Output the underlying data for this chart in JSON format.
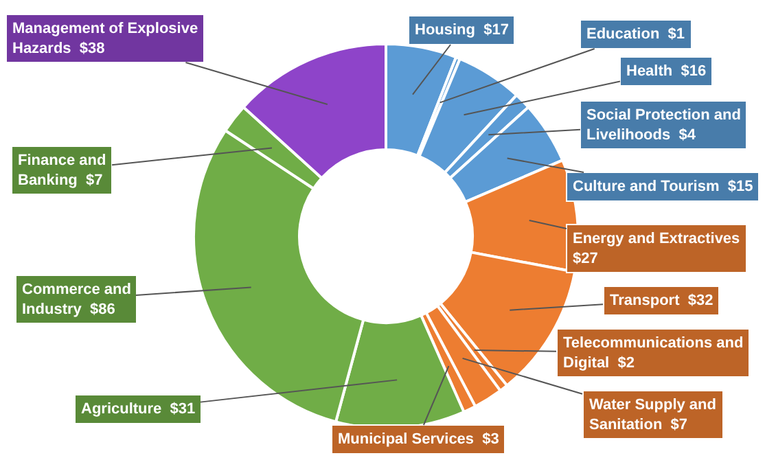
{
  "chart_data": {
    "type": "donut",
    "categories": [
      "Housing",
      "Education",
      "Health",
      "Social Protection and Livelihoods",
      "Culture and Tourism",
      "Energy and Extractives",
      "Transport",
      "Telecommunications and Digital",
      "Water Supply and Sanitation",
      "Municipal Services",
      "Agriculture",
      "Commerce and Industry",
      "Finance and Banking",
      "Management of Explosive Hazards"
    ],
    "values": [
      17,
      1,
      16,
      4,
      15,
      27,
      32,
      2,
      7,
      3,
      31,
      86,
      7,
      38
    ],
    "value_labels": [
      "$17",
      "$1",
      "$16",
      "$4",
      "$15",
      "$27",
      "$32",
      "$2",
      "$7",
      "$3",
      "$31",
      "$86",
      "$7",
      "$38"
    ],
    "colors": [
      "#5b9bd5",
      "#5b9bd5",
      "#5b9bd5",
      "#5b9bd5",
      "#5b9bd5",
      "#ed7d31",
      "#ed7d31",
      "#ed7d31",
      "#ed7d31",
      "#ed7d31",
      "#70ad47",
      "#70ad47",
      "#70ad47",
      "#8e44c9"
    ]
  }
}
